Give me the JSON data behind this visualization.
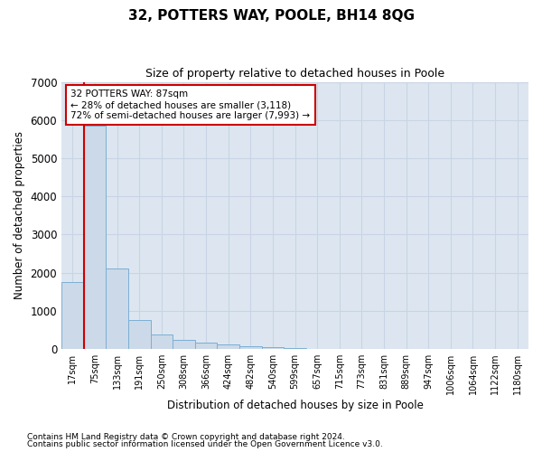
{
  "title": "32, POTTERS WAY, POOLE, BH14 8QG",
  "subtitle": "Size of property relative to detached houses in Poole",
  "xlabel": "Distribution of detached houses by size in Poole",
  "ylabel": "Number of detached properties",
  "footnote1": "Contains HM Land Registry data © Crown copyright and database right 2024.",
  "footnote2": "Contains public sector information licensed under the Open Government Licence v3.0.",
  "annotation_title": "32 POTTERS WAY: 87sqm",
  "annotation_line1": "← 28% of detached houses are smaller (3,118)",
  "annotation_line2": "72% of semi-detached houses are larger (7,993) →",
  "bar_color": "#ccd9e8",
  "bar_edge_color": "#7bafd4",
  "red_line_color": "#cc0000",
  "annotation_box_color": "#ffffff",
  "annotation_box_edge": "#cc0000",
  "grid_color": "#c8d4e4",
  "background_color": "#dde6f0",
  "categories": [
    "17sqm",
    "75sqm",
    "133sqm",
    "191sqm",
    "250sqm",
    "308sqm",
    "366sqm",
    "424sqm",
    "482sqm",
    "540sqm",
    "599sqm",
    "657sqm",
    "715sqm",
    "773sqm",
    "831sqm",
    "889sqm",
    "947sqm",
    "1006sqm",
    "1064sqm",
    "1122sqm",
    "1180sqm"
  ],
  "values": [
    1750,
    5850,
    2100,
    750,
    380,
    230,
    160,
    110,
    70,
    50,
    30,
    10,
    5,
    3,
    2,
    1,
    1,
    1,
    1,
    0,
    0
  ],
  "ylim": [
    0,
    7000
  ],
  "yticks": [
    0,
    1000,
    2000,
    3000,
    4000,
    5000,
    6000,
    7000
  ],
  "red_line_x": 0.5,
  "fig_width": 6.0,
  "fig_height": 5.0,
  "dpi": 100
}
